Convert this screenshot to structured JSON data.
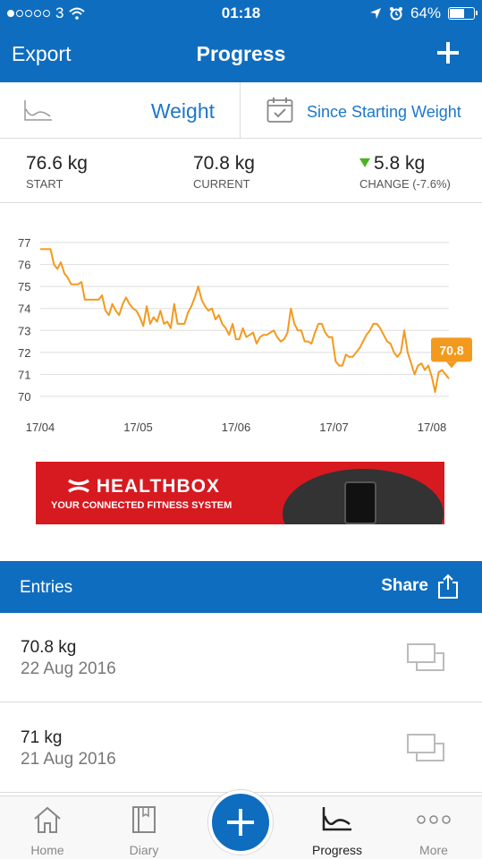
{
  "status_bar": {
    "carrier": "3",
    "signal_dots_filled": 1,
    "signal_dots_total": 5,
    "time": "01:18",
    "battery": "64%",
    "battery_level": 0.64,
    "icons": [
      "wifi-icon",
      "location-arrow-icon",
      "alarm-icon",
      "battery-icon"
    ]
  },
  "nav": {
    "left": "Export",
    "title": "Progress",
    "right_icon": "plus-icon"
  },
  "filter": {
    "metric": "Weight",
    "metric_icon": "chart-line-icon",
    "range": "Since Starting Weight",
    "range_icon": "calendar-check-icon"
  },
  "summary": {
    "start_value": "76.6 kg",
    "start_label": "START",
    "current_value": "70.8 kg",
    "current_label": "CURRENT",
    "change_value": "5.8 kg",
    "change_label": "CHANGE (-7.6%)",
    "change_icon": "arrow-down-icon",
    "change_color": "#4cb320"
  },
  "chart_data": {
    "type": "line",
    "title": "",
    "xlabel": "",
    "ylabel": "",
    "x_tick_labels": [
      "17/04",
      "17/05",
      "17/06",
      "17/07",
      "17/08"
    ],
    "y_tick_labels": [
      "77",
      "76",
      "75",
      "74",
      "73",
      "72",
      "71",
      "70"
    ],
    "ylim": [
      70,
      77
    ],
    "grid": true,
    "line_color": "#f39a1e",
    "callout": "70.8",
    "series": [
      {
        "values": [
          76.7,
          76.7,
          76.7,
          76.7,
          76.0,
          75.8,
          76.1,
          75.6,
          75.4,
          75.1,
          75.1,
          75.1,
          75.2,
          74.4,
          74.4,
          74.4,
          74.4,
          74.4,
          74.6,
          73.9,
          73.7,
          74.2,
          73.9,
          73.7,
          74.2,
          74.5,
          74.2,
          74.0,
          73.9,
          73.6,
          73.2,
          74.1,
          73.3,
          73.6,
          73.4,
          73.9,
          73.3,
          73.4,
          73.1,
          74.2,
          73.3,
          73.3,
          73.3,
          73.8,
          74.1,
          74.5,
          75.0,
          74.4,
          74.1,
          73.9,
          74.0,
          73.5,
          73.7,
          73.3,
          73.1,
          72.8,
          73.3,
          72.6,
          72.6,
          73.1,
          72.7,
          72.8,
          72.9,
          72.4,
          72.7,
          72.8,
          72.8,
          72.9,
          73.0,
          72.7,
          72.5,
          72.6,
          72.9,
          74.0,
          73.3,
          73.0,
          73.0,
          72.5,
          72.5,
          72.4,
          72.9,
          73.3,
          73.3,
          72.9,
          72.7,
          72.7,
          71.6,
          71.4,
          71.4,
          71.9,
          71.8,
          71.8,
          72.0,
          72.2,
          72.5,
          72.8,
          73.0,
          73.3,
          73.3,
          73.1,
          72.8,
          72.5,
          72.4,
          72.0,
          71.8,
          72.0,
          73.0,
          72.0,
          71.5,
          71.0,
          71.4,
          71.5,
          71.2,
          71.4,
          70.9,
          70.2,
          71.1,
          71.2,
          71.0,
          70.8
        ]
      }
    ]
  },
  "ad": {
    "brand": "HEALTHBOX",
    "brand_prefix": "UA",
    "tagline": "YOUR CONNECTED FITNESS SYSTEM",
    "background": "#d71920"
  },
  "entries": {
    "title": "Entries",
    "share": "Share",
    "share_icon": "share-icon",
    "items": [
      {
        "value": "70.8 kg",
        "date": "22 Aug 2016",
        "icon": "photo-placeholder-icon"
      },
      {
        "value": "71 kg",
        "date": "21 Aug 2016",
        "icon": "photo-placeholder-icon"
      }
    ]
  },
  "tabbar": {
    "items": [
      {
        "label": "Home",
        "icon": "home-icon"
      },
      {
        "label": "Diary",
        "icon": "book-icon"
      },
      {
        "label": "Progress",
        "icon": "chart-line-icon"
      },
      {
        "label": "More",
        "icon": "more-dots-icon"
      }
    ],
    "active": "Progress",
    "fab_icon": "plus-icon"
  },
  "colors": {
    "primary": "#0f6dc0",
    "accent_text": "#1c77c9",
    "chart_line": "#f39a1e"
  }
}
